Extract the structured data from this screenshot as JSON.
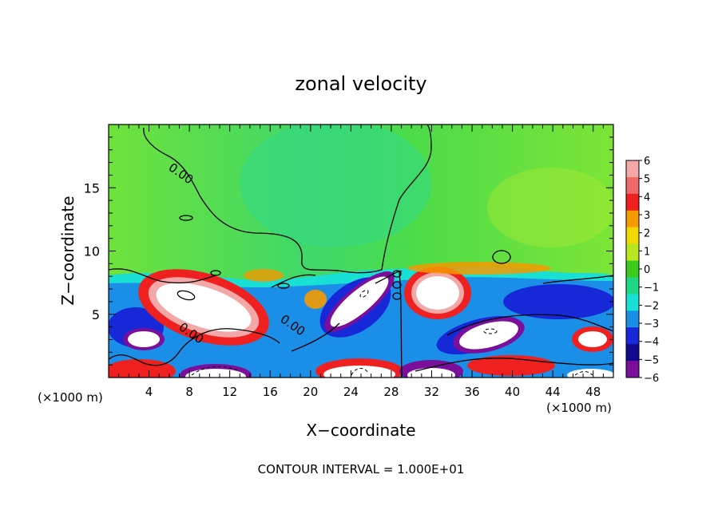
{
  "chart_data": {
    "type": "heatmap",
    "title": "zonal velocity",
    "xlabel": "X−coordinate",
    "ylabel": "Z−coordinate",
    "x_unit_note": "(×1000 m)",
    "y_unit_note": "(×1000 m)",
    "xlim": [
      0,
      50
    ],
    "ylim": [
      0,
      20
    ],
    "x_ticks": [
      "4",
      "8",
      "12",
      "16",
      "20",
      "24",
      "28",
      "32",
      "36",
      "40",
      "44",
      "48"
    ],
    "y_ticks": [
      "5",
      "10",
      "15"
    ],
    "colorbar": {
      "levels": [
        "6",
        "5",
        "4",
        "3",
        "2",
        "1",
        "0",
        "−1",
        "−2",
        "−3",
        "−4",
        "−5",
        "−6"
      ],
      "colors": [
        "#f4a7a7",
        "#f06a6a",
        "#ef2020",
        "#f59a00",
        "#f0d800",
        "#b8e620",
        "#3ccc1e",
        "#1fd884",
        "#19e0d4",
        "#1b8fe8",
        "#1728d8",
        "#12088f",
        "#7a0f9c"
      ]
    },
    "contour_labels": [
      "0.00",
      "0.00",
      "0.00"
    ],
    "footer": "CONTOUR INTERVAL = 1.000E+01",
    "colors": {
      "background_field": "#66e040",
      "upper_field": "#4fdc3a",
      "strong_positive": "#ffffff",
      "strong_negative": "#ffffff"
    }
  }
}
